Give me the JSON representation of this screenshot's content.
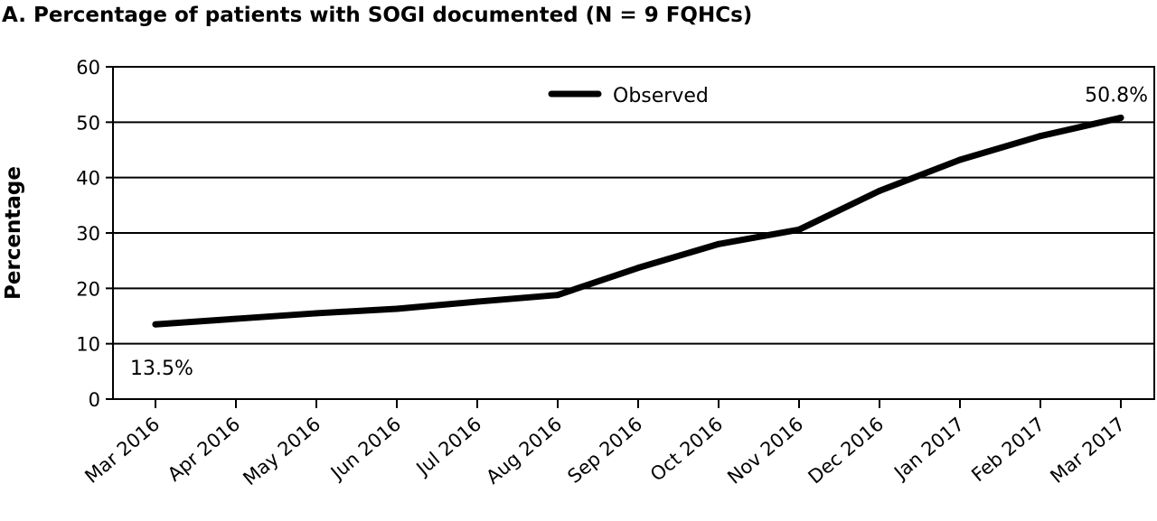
{
  "chart_data": {
    "type": "line",
    "title": "A. Percentage of patients with SOGI documented (N = 9 FQHCs)",
    "xlabel": "",
    "ylabel": "Percentage",
    "ylim": [
      0,
      60
    ],
    "yticks": [
      "0",
      "10",
      "20",
      "30",
      "40",
      "50",
      "60"
    ],
    "grid": true,
    "legend_position": "top-center",
    "categories": [
      "Mar 2016",
      "Apr 2016",
      "May 2016",
      "Jun 2016",
      "Jul 2016",
      "Aug 2016",
      "Sep 2016",
      "Oct 2016",
      "Nov 2016",
      "Dec 2016",
      "Jan 2017",
      "Feb 2017",
      "Mar 2017"
    ],
    "series": [
      {
        "name": "Observed",
        "color": "#000000",
        "values": [
          13.5,
          14.5,
          15.5,
          16.3,
          17.6,
          18.8,
          23.7,
          28.0,
          30.6,
          37.6,
          43.2,
          47.5,
          50.8
        ]
      }
    ],
    "annotations": [
      {
        "text": "13.5%",
        "index": 0
      },
      {
        "text": "50.8%",
        "index": 12
      }
    ]
  }
}
